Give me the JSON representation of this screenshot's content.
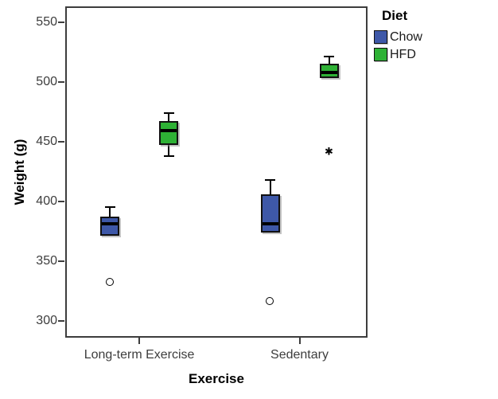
{
  "figure": {
    "background": "#ffffff",
    "axis_color": "#3d3d3d",
    "tick_label_color": "#3d3d3d"
  },
  "legend": {
    "title": "Diet",
    "items": [
      {
        "label": "Chow",
        "color": "#3e58a8"
      },
      {
        "label": "HFD",
        "color": "#2eb135"
      }
    ]
  },
  "chart_data": {
    "type": "boxplot",
    "title": "",
    "xlabel": "Exercise",
    "ylabel": "Weight (g)",
    "categories": [
      "Long-term Exercise",
      "Sedentary"
    ],
    "y_ticks": [
      550,
      500,
      450,
      400,
      350,
      300
    ],
    "ylim": [
      286,
      563
    ],
    "grid": false,
    "legend_position": "top-right",
    "series": [
      {
        "name": "Chow",
        "color": "#3e58a8",
        "boxes": [
          {
            "category": "Long-term Exercise",
            "whisker_low": 371,
            "q1": 371,
            "median": 381,
            "q3": 387,
            "whisker_high": 395,
            "outliers": [
              {
                "type": "circle",
                "value": 332
              }
            ]
          },
          {
            "category": "Sedentary",
            "whisker_low": 374,
            "q1": 374,
            "median": 381,
            "q3": 406,
            "whisker_high": 418,
            "outliers": [
              {
                "type": "circle",
                "value": 316
              }
            ]
          }
        ]
      },
      {
        "name": "HFD",
        "color": "#2eb135",
        "boxes": [
          {
            "category": "Long-term Exercise",
            "whisker_low": 438,
            "q1": 447,
            "median": 459,
            "q3": 467,
            "whisker_high": 474,
            "outliers": []
          },
          {
            "category": "Sedentary",
            "whisker_low": 503,
            "q1": 503,
            "median": 508,
            "q3": 515,
            "whisker_high": 521,
            "outliers": [
              {
                "type": "star",
                "value": 442
              }
            ]
          }
        ]
      }
    ]
  }
}
